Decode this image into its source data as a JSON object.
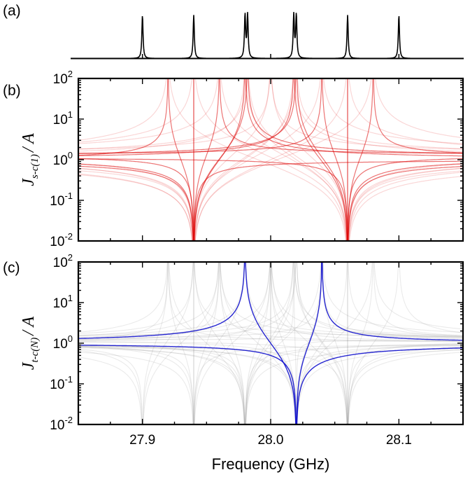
{
  "chart_data": [
    {
      "panel": "(a)",
      "type": "line",
      "description_values": {
        "peak_frequencies_ghz": [
          27.9,
          27.94,
          27.98,
          27.982,
          28.018,
          28.02,
          28.06,
          28.1
        ],
        "xlim": [
          27.85,
          28.15
        ]
      },
      "series": [
        {
          "color": "#000000"
        }
      ]
    },
    {
      "panel": "(b)",
      "type": "line",
      "ylabel_main": "J",
      "ylabel_sub": "s-c(1)",
      "ylabel_tail": "/ A",
      "yscale": "log",
      "ylim": [
        0.01,
        100
      ],
      "xlim": [
        27.85,
        28.15
      ],
      "ytick_base": "10",
      "ytick_exponents": [
        "-2",
        "-1",
        "0",
        "1",
        "2"
      ],
      "curve_color": "#dd0000",
      "zeros_ghz": [
        27.94,
        28.06
      ],
      "poles_ghz": [
        27.92,
        27.94,
        27.96,
        27.98,
        27.982,
        28.0,
        28.018,
        28.02,
        28.04,
        28.06,
        28.08
      ]
    },
    {
      "panel": "(c)",
      "type": "line",
      "ylabel_main": "J",
      "ylabel_sub": "t-c(N)",
      "ylabel_tail": "/ A",
      "yscale": "log",
      "ylim": [
        0.01,
        100
      ],
      "xlim": [
        27.85,
        28.15
      ],
      "ytick_base": "10",
      "ytick_exponents": [
        "-2",
        "-1",
        "0",
        "1",
        "2"
      ],
      "highlight_color": "#1010cc",
      "background_color": "#888888",
      "zeros_ghz": [
        27.9,
        27.94,
        27.98,
        28.02,
        28.06
      ],
      "poles_ghz": [
        27.92,
        27.94,
        27.96,
        27.98,
        28.0,
        28.018,
        28.02,
        28.04,
        28.06,
        28.08,
        28.1
      ],
      "xtick_labels": [
        "27.9",
        "28.0",
        "28.1"
      ],
      "xtick_values": [
        27.9,
        28.0,
        28.1
      ],
      "xlabel": "Frequency (GHz)"
    }
  ],
  "labels": {
    "panel_a": "(a)",
    "panel_b": "(b)",
    "panel_c": "(c)"
  }
}
